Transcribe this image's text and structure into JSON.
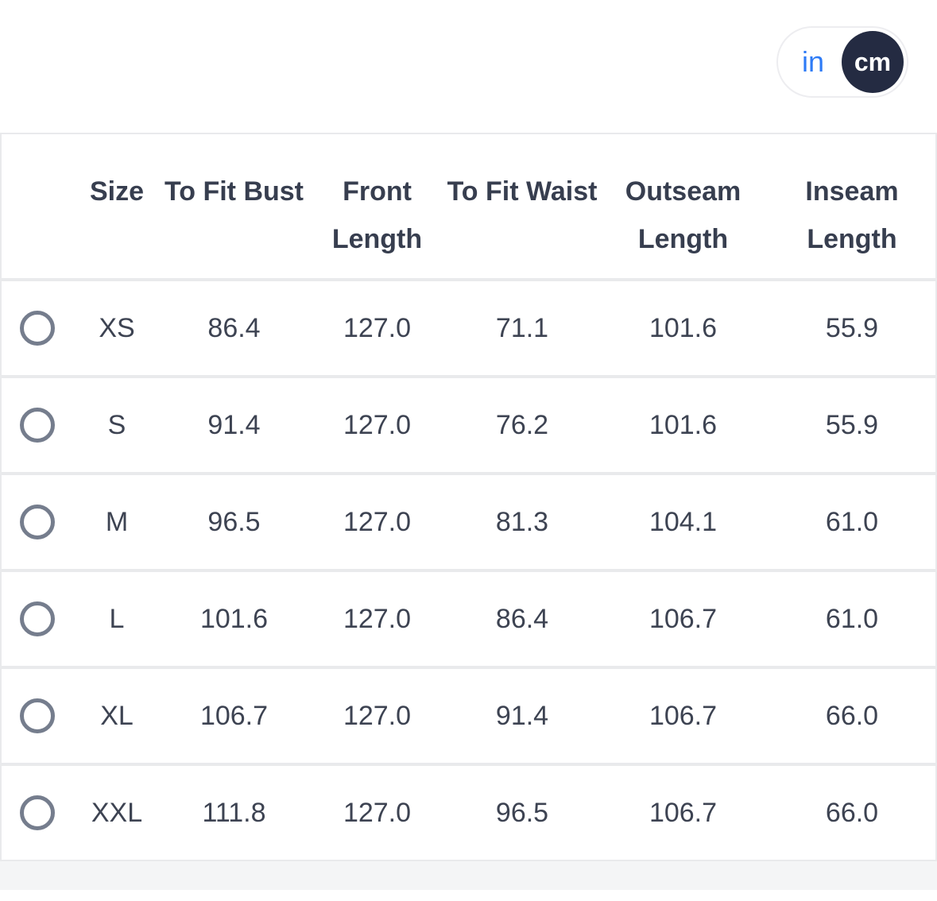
{
  "unit_toggle": {
    "in_label": "in",
    "cm_label": "cm",
    "selected": "cm"
  },
  "table": {
    "columns": [
      "Size",
      "To Fit Bust",
      "Front Length",
      "To Fit Waist",
      "Outseam Length",
      "Inseam Length"
    ],
    "rows": [
      {
        "size": "XS",
        "values": [
          "86.4",
          "127.0",
          "71.1",
          "101.6",
          "55.9"
        ],
        "selected": false
      },
      {
        "size": "S",
        "values": [
          "91.4",
          "127.0",
          "76.2",
          "101.6",
          "55.9"
        ],
        "selected": false
      },
      {
        "size": "M",
        "values": [
          "96.5",
          "127.0",
          "81.3",
          "104.1",
          "61.0"
        ],
        "selected": false
      },
      {
        "size": "L",
        "values": [
          "101.6",
          "127.0",
          "86.4",
          "106.7",
          "61.0"
        ],
        "selected": false
      },
      {
        "size": "XL",
        "values": [
          "106.7",
          "127.0",
          "91.4",
          "106.7",
          "66.0"
        ],
        "selected": false
      },
      {
        "size": "XXL",
        "values": [
          "111.8",
          "127.0",
          "96.5",
          "106.7",
          "66.0"
        ],
        "selected": false
      }
    ]
  },
  "colors": {
    "accent_blue": "#2e7bf6",
    "toggle_dark": "#242b42",
    "text": "#3d4352",
    "row_gap": "#e9eaec",
    "bottom_strip": "#f4f5f6",
    "radio_border": "#757d8d"
  }
}
